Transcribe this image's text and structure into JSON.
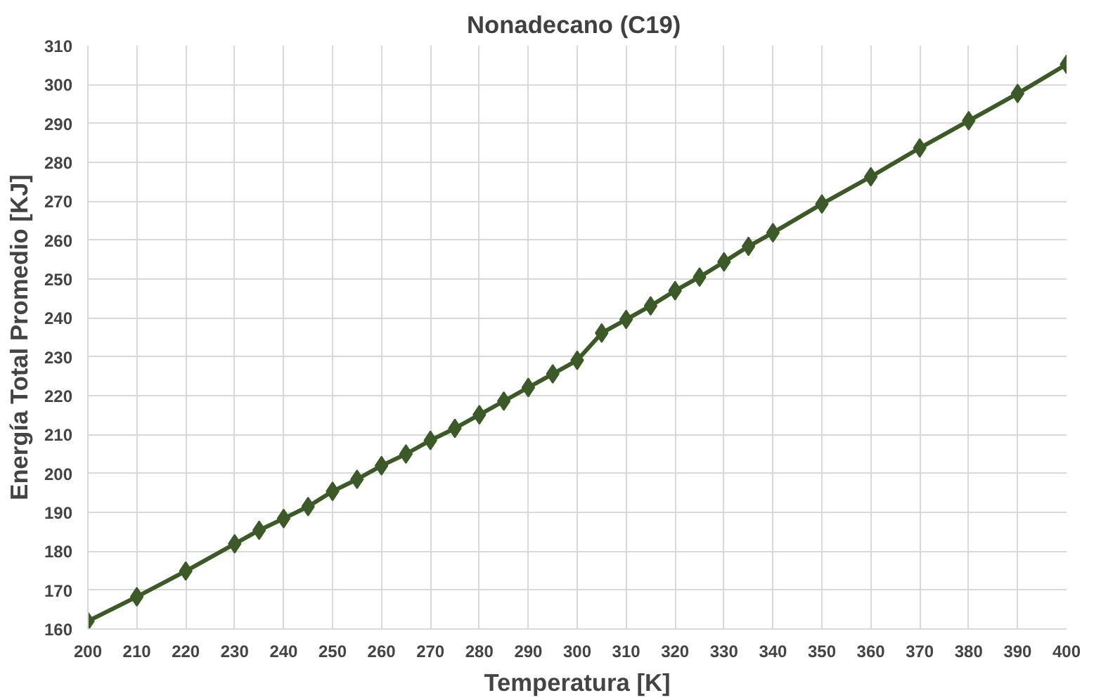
{
  "chart_data": {
    "type": "line",
    "title": "Nonadecano  (C19)",
    "xlabel": "Temperatura [K]",
    "ylabel": "Energía Total Promedio [KJ]",
    "x": [
      200,
      210,
      220,
      230,
      235,
      240,
      245,
      250,
      255,
      260,
      265,
      270,
      275,
      280,
      285,
      290,
      295,
      300,
      305,
      310,
      315,
      320,
      325,
      330,
      335,
      340,
      350,
      360,
      370,
      380,
      390,
      400
    ],
    "series": [
      {
        "color": "#3b5a28",
        "values": [
          162,
          168.3,
          174.9,
          181.9,
          185.4,
          188.4,
          191.5,
          195.4,
          198.5,
          202,
          205,
          208.5,
          211.6,
          215.1,
          218.6,
          222.1,
          225.6,
          229.1,
          236.1,
          239.6,
          243.1,
          247,
          250.5,
          254.4,
          258.4,
          261.9,
          269.3,
          276.3,
          283.7,
          290.7,
          297.7,
          305.2
        ]
      }
    ],
    "xlim": [
      200,
      400
    ],
    "xticks": [
      200,
      210,
      220,
      230,
      240,
      250,
      260,
      270,
      280,
      290,
      300,
      310,
      320,
      330,
      340,
      350,
      360,
      370,
      380,
      390,
      400
    ],
    "ylim": [
      160,
      310
    ],
    "yticks": [
      160,
      170,
      180,
      190,
      200,
      210,
      220,
      230,
      240,
      250,
      260,
      270,
      280,
      290,
      300,
      310
    ],
    "grid": true,
    "marker": "diamond",
    "line_style": "solid"
  }
}
